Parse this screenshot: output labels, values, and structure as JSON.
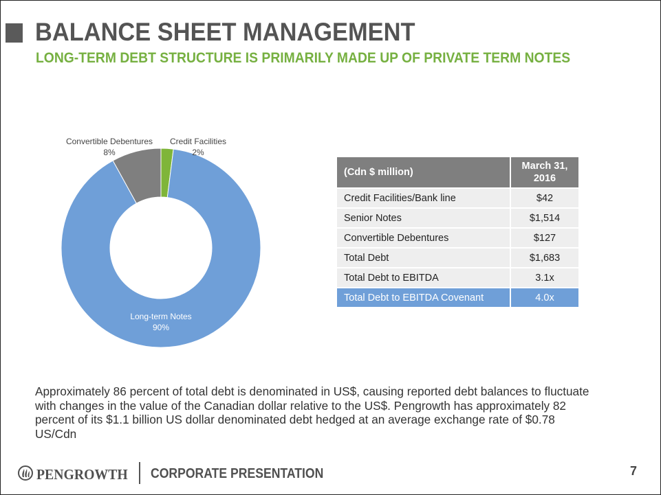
{
  "header": {
    "title": "BALANCE SHEET MANAGEMENT",
    "subtitle": "LONG-TERM DEBT STRUCTURE IS PRIMARILY MADE UP OF PRIVATE TERM NOTES"
  },
  "chart_data": {
    "type": "pie",
    "variant": "donut",
    "slices": [
      {
        "name": "Credit Facilities",
        "value": 2,
        "label": "2%",
        "color": "#7fb539"
      },
      {
        "name": "Long-term Notes",
        "value": 90,
        "label": "90%",
        "color": "#6f9fd8"
      },
      {
        "name": "Convertible Debentures",
        "value": 8,
        "label": "8%",
        "color": "#7f7f7f"
      }
    ]
  },
  "table": {
    "header": [
      "(Cdn $ million)",
      "March 31, 2016"
    ],
    "rows": [
      {
        "label": "Credit Facilities/Bank line",
        "value": "$42"
      },
      {
        "label": "Senior Notes",
        "value": "$1,514"
      },
      {
        "label": "Convertible Debentures",
        "value": "$127"
      },
      {
        "label": "Total Debt",
        "value": "$1,683"
      },
      {
        "label": "Total Debt to EBITDA",
        "value": "3.1x"
      },
      {
        "label": "Total Debt to EBITDA Covenant",
        "value": "4.0x"
      }
    ]
  },
  "body_text": "Approximately 86 percent of total debt is denominated in US$, causing reported debt balances to fluctuate with changes in the value of the Canadian dollar relative to the US$. Pengrowth has approximately 82 percent of its $1.1 billion US dollar denominated debt hedged at an average exchange rate of $0.78 US/Cdn",
  "footer": {
    "brand": "PENGROWTH",
    "section": "CORPORATE PRESENTATION",
    "page_number": "7"
  },
  "colors": {
    "title": "#545454",
    "subtitle": "#76b041",
    "table_header": "#7f7f7f",
    "table_highlight": "#6f9fd8"
  }
}
